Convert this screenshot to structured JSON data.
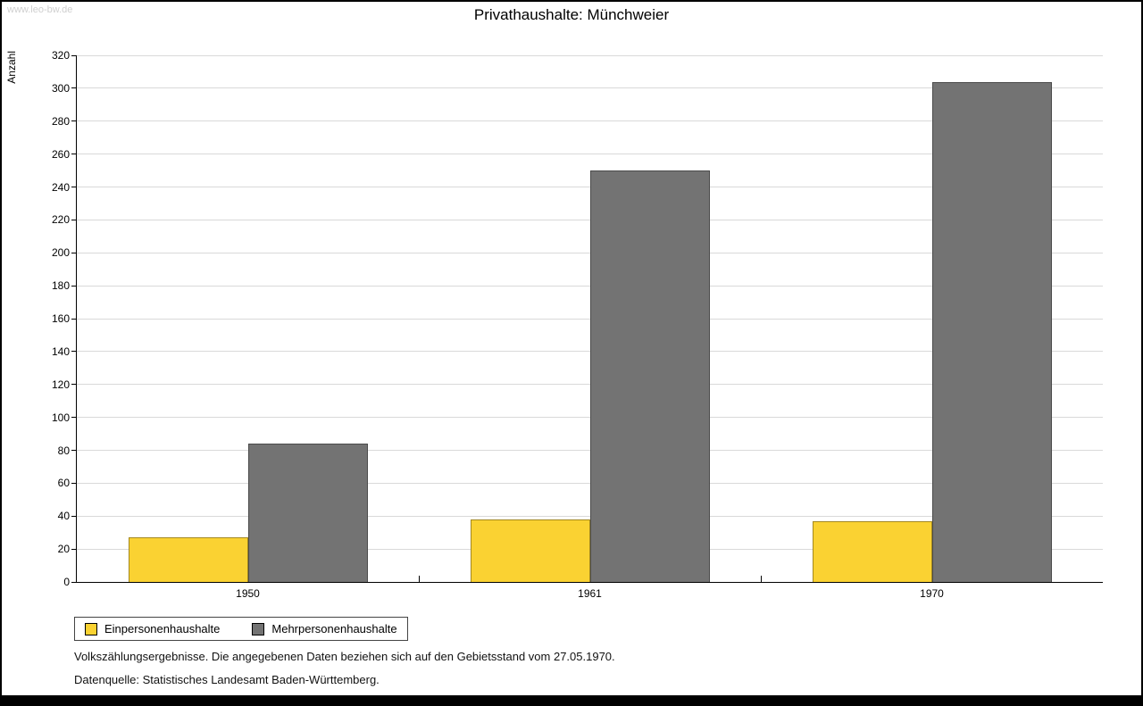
{
  "watermark": "www.leo-bw.de",
  "chart_data": {
    "type": "bar",
    "title": "Privathaushalte: Münchweier",
    "xlabel": "",
    "ylabel": "Anzahl",
    "categories": [
      "1950",
      "1961",
      "1970"
    ],
    "series": [
      {
        "name": "Einpersonenhaushalte",
        "color": "#FAD232",
        "values": [
          27,
          38,
          37
        ]
      },
      {
        "name": "Mehrpersonenhaushalte",
        "color": "#737373",
        "values": [
          84,
          250,
          304
        ]
      }
    ],
    "ylim": [
      0,
      320
    ],
    "ytick_step": 20,
    "grid": true,
    "legend_position": "bottom-left"
  },
  "footnotes": [
    "Volkszählungsergebnisse. Die angegebenen Daten beziehen sich auf den Gebietsstand vom 27.05.1970.",
    "Datenquelle: Statistisches Landesamt Baden-Württemberg."
  ]
}
